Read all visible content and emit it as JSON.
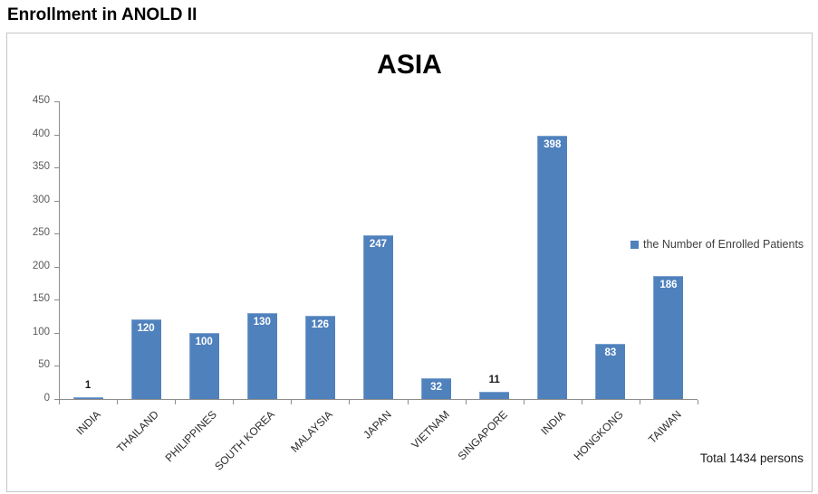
{
  "page_title": "Enrollment in ANOLD II",
  "chart_data": {
    "type": "bar",
    "title": "ASIA",
    "categories": [
      "INDIA",
      "THAILAND",
      "PHILIPPINES",
      "SOUTH KOREA",
      "MALAYSIA",
      "JAPAN",
      "VIETNAM",
      "SINGAPORE",
      "INDIA",
      "HONGKONG",
      "TAIWAN"
    ],
    "values": [
      1,
      120,
      100,
      130,
      126,
      247,
      32,
      11,
      398,
      83,
      186
    ],
    "series": [
      {
        "name": "the Number of Enrolled Patients",
        "values": [
          1,
          120,
          100,
          130,
          126,
          247,
          32,
          11,
          398,
          83,
          186
        ]
      }
    ],
    "xlabel": "",
    "ylabel": "",
    "ylim": [
      0,
      450
    ],
    "ytick_step": 50,
    "ytick_labels": [
      "0",
      "50",
      "100",
      "150",
      "200",
      "250",
      "300",
      "350",
      "400",
      "450"
    ],
    "grid": false,
    "legend_position": "right",
    "legend_label": "the Number of Enrolled Patients",
    "bar_color": "#4F81BD",
    "label_inside_color": "#FFFFFF",
    "label_outside_color": "#1a1a1a",
    "data_labels": true
  },
  "footer": {
    "total_label": "Total 1434 persons"
  }
}
